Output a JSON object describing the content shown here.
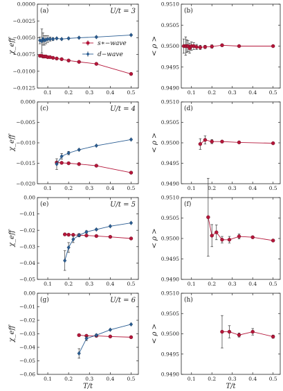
{
  "colors": {
    "s_wave": "#b5163a",
    "d_wave": "#2a5d93",
    "frame": "#222222"
  },
  "x_axis": {
    "label": "T/t",
    "ticks": [
      "0.1",
      "0.2",
      "0.3",
      "0.4",
      "0.5"
    ],
    "tick_values": [
      0.1,
      0.2,
      0.3,
      0.4,
      0.5
    ],
    "lim": [
      0.05,
      0.535
    ]
  },
  "chart_data": [
    {
      "id": "a",
      "type": "line",
      "tag": "(a)",
      "annotation": "U/t = 3",
      "ylabel": "χ_eff",
      "ylim": [
        -0.0125,
        0.0
      ],
      "yticks": [
        0.0,
        -0.0025,
        -0.005,
        -0.0075,
        -0.01,
        -0.0125
      ],
      "yticklabels": [
        "0.0000",
        "−0.0025",
        "−0.0050",
        "−0.0075",
        "−0.0100",
        "−0.0125"
      ],
      "legend": {
        "position": "upper-center",
        "entries": [
          "s∗−wave",
          "d−wave"
        ]
      },
      "series": [
        {
          "name": "s∗−wave",
          "color_key": "s_wave",
          "marker": "circle",
          "x": [
            0.0625,
            0.0714,
            0.0769,
            0.0833,
            0.0909,
            0.1,
            0.1111,
            0.125,
            0.1429,
            0.1667,
            0.2,
            0.25,
            0.3333,
            0.5
          ],
          "y": [
            -0.0077,
            -0.0077,
            -0.0078,
            -0.0078,
            -0.0078,
            -0.0079,
            -0.0079,
            -0.008,
            -0.0081,
            -0.0082,
            -0.0084,
            -0.0086,
            -0.0089,
            -0.0104
          ],
          "err": [
            0,
            0,
            0,
            0,
            0,
            0,
            0,
            0,
            0,
            0,
            0,
            0,
            0,
            0
          ]
        },
        {
          "name": "d−wave",
          "color_key": "d_wave",
          "marker": "diamond",
          "x": [
            0.0625,
            0.0714,
            0.0769,
            0.0833,
            0.0909,
            0.1,
            0.1111,
            0.125,
            0.1429,
            0.1667,
            0.2,
            0.25,
            0.3333,
            0.5
          ],
          "y": [
            -0.0054,
            -0.0055,
            -0.0052,
            -0.0054,
            -0.0053,
            -0.0052,
            -0.0052,
            -0.0052,
            -0.0051,
            -0.0052,
            -0.0051,
            -0.005,
            -0.0049,
            -0.0046
          ],
          "err": [
            0.0005,
            0.0018,
            0.0009,
            0.0007,
            0.0006,
            0.0005,
            0.0003,
            0.0002,
            0.0001,
            0.0001,
            0.0001,
            0.0001,
            0.0001,
            0.0001
          ]
        }
      ]
    },
    {
      "id": "b",
      "type": "line",
      "tag": "(b)",
      "annotation": "",
      "ylabel": "< ρ >",
      "ylim": [
        0.949,
        0.951
      ],
      "yticks": [
        0.951,
        0.9505,
        0.95,
        0.9495,
        0.949
      ],
      "yticklabels": [
        "0.9510",
        "0.9505",
        "0.9500",
        "0.9495",
        "0.9490"
      ],
      "series": [
        {
          "name": "",
          "color_key": "s_wave",
          "marker": "circle",
          "x": [
            0.0625,
            0.0714,
            0.0769,
            0.0833,
            0.0909,
            0.1,
            0.1111,
            0.125,
            0.1429,
            0.1667,
            0.2,
            0.25,
            0.3333,
            0.5
          ],
          "y": [
            0.95,
            0.95,
            0.95,
            0.95,
            0.94995,
            0.95,
            0.95,
            0.94998,
            0.94997,
            0.94998,
            0.94999,
            0.95002,
            0.95,
            0.95
          ],
          "err": [
            0.00017,
            0.00022,
            0.00015,
            0.00013,
            0.00012,
            0.0001,
            8e-05,
            6e-05,
            5e-05,
            4e-05,
            4e-05,
            3e-05,
            1e-05,
            1e-05
          ]
        }
      ]
    },
    {
      "id": "c",
      "type": "line",
      "tag": "(c)",
      "annotation": "U/t = 4",
      "ylabel": "χ_eff",
      "ylim": [
        -0.02,
        0.0
      ],
      "yticks": [
        0.0,
        -0.005,
        -0.01,
        -0.015,
        -0.02
      ],
      "yticklabels": [
        "0.000",
        "−0.005",
        "−0.010",
        "−0.015",
        "−0.020"
      ],
      "series": [
        {
          "name": "s∗−wave",
          "color_key": "s_wave",
          "marker": "circle",
          "x": [
            0.1429,
            0.1667,
            0.2,
            0.25,
            0.3333,
            0.5
          ],
          "y": [
            -0.0148,
            -0.0149,
            -0.015,
            -0.0152,
            -0.0156,
            -0.0173
          ],
          "err": [
            0,
            0,
            0,
            0,
            0,
            0
          ]
        },
        {
          "name": "d−wave",
          "color_key": "d_wave",
          "marker": "diamond",
          "x": [
            0.1429,
            0.1667,
            0.2,
            0.25,
            0.3333,
            0.5
          ],
          "y": [
            -0.0152,
            -0.0133,
            -0.0125,
            -0.0117,
            -0.0107,
            -0.0092
          ],
          "err": [
            0.0013,
            0.0007,
            0.0004,
            0.0002,
            0.0001,
            0.0001
          ]
        }
      ]
    },
    {
      "id": "d",
      "type": "line",
      "tag": "(d)",
      "annotation": "",
      "ylabel": "< ρ >",
      "ylim": [
        0.949,
        0.951
      ],
      "yticks": [
        0.951,
        0.9505,
        0.95,
        0.9495,
        0.949
      ],
      "yticklabels": [
        "0.9510",
        "0.9505",
        "0.9500",
        "0.9495",
        "0.9490"
      ],
      "series": [
        {
          "name": "",
          "color_key": "s_wave",
          "marker": "circle",
          "x": [
            0.1429,
            0.1667,
            0.2,
            0.25,
            0.3333,
            0.5
          ],
          "y": [
            0.94997,
            0.95007,
            0.95003,
            0.95003,
            0.95001,
            0.94999
          ],
          "err": [
            0.00013,
            0.0001,
            5e-05,
            3e-05,
            2e-05,
            1e-05
          ]
        }
      ]
    },
    {
      "id": "e",
      "type": "line",
      "tag": "(e)",
      "annotation": "U/t = 5",
      "ylabel": "χ_eff",
      "ylim": [
        -0.05,
        0.0
      ],
      "yticks": [
        0.0,
        -0.01,
        -0.02,
        -0.03,
        -0.04,
        -0.05
      ],
      "yticklabels": [
        "0.00",
        "−0.01",
        "−0.02",
        "−0.03",
        "−0.04",
        "−0.05"
      ],
      "series": [
        {
          "name": "s∗−wave",
          "color_key": "s_wave",
          "marker": "circle",
          "x": [
            0.1818,
            0.2,
            0.2222,
            0.25,
            0.2857,
            0.3333,
            0.4,
            0.5
          ],
          "y": [
            -0.0225,
            -0.0227,
            -0.0228,
            -0.023,
            -0.0232,
            -0.0235,
            -0.024,
            -0.025
          ],
          "err": [
            0,
            0,
            0,
            0,
            0,
            0,
            0,
            0
          ]
        },
        {
          "name": "d−wave",
          "color_key": "d_wave",
          "marker": "diamond",
          "x": [
            0.1818,
            0.2,
            0.2222,
            0.25,
            0.2857,
            0.3333,
            0.4,
            0.5
          ],
          "y": [
            -0.0385,
            -0.0305,
            -0.0255,
            -0.023,
            -0.021,
            -0.0195,
            -0.0175,
            -0.0155
          ],
          "err": [
            0.006,
            0.003,
            0.002,
            0.001,
            0.0007,
            0.0005,
            0.0003,
            0.0002
          ]
        }
      ]
    },
    {
      "id": "f",
      "type": "line",
      "tag": "(f)",
      "annotation": "",
      "ylabel": "< ρ >",
      "ylim": [
        0.949,
        0.951
      ],
      "yticks": [
        0.951,
        0.9505,
        0.95,
        0.9495,
        0.949
      ],
      "yticklabels": [
        "0.9510",
        "0.9505",
        "0.9500",
        "0.9495",
        "0.9490"
      ],
      "series": [
        {
          "name": "",
          "color_key": "s_wave",
          "marker": "circle",
          "x": [
            0.1818,
            0.2,
            0.2222,
            0.25,
            0.2857,
            0.3333,
            0.4,
            0.5
          ],
          "y": [
            0.95052,
            0.95007,
            0.95015,
            0.94997,
            0.94997,
            0.95005,
            0.95003,
            0.94995
          ],
          "err": [
            0.00095,
            0.00027,
            0.00018,
            8e-05,
            8e-05,
            6e-05,
            3e-05,
            3e-05
          ]
        }
      ]
    },
    {
      "id": "g",
      "type": "line",
      "tag": "(g)",
      "annotation": "U/t = 6",
      "ylabel": "χ_eff",
      "ylim": [
        -0.06,
        0.0
      ],
      "yticks": [
        0.0,
        -0.01,
        -0.02,
        -0.03,
        -0.04,
        -0.05,
        -0.06
      ],
      "yticklabels": [
        "0.00",
        "−0.01",
        "−0.02",
        "−0.03",
        "−0.04",
        "−0.05",
        "−0.06"
      ],
      "series": [
        {
          "name": "s∗−wave",
          "color_key": "s_wave",
          "marker": "circle",
          "x": [
            0.25,
            0.2857,
            0.3333,
            0.4,
            0.5
          ],
          "y": [
            -0.031,
            -0.0315,
            -0.0315,
            -0.032,
            -0.0325
          ],
          "err": [
            0,
            0,
            0,
            0,
            0
          ]
        },
        {
          "name": "d−wave",
          "color_key": "d_wave",
          "marker": "diamond",
          "x": [
            0.25,
            0.2857,
            0.3333,
            0.4,
            0.5
          ],
          "y": [
            -0.0445,
            -0.0335,
            -0.031,
            -0.027,
            -0.023
          ],
          "err": [
            0.0035,
            0.0015,
            0.0008,
            0.0004,
            0.0003
          ]
        }
      ]
    },
    {
      "id": "h",
      "type": "line",
      "tag": "(h)",
      "annotation": "",
      "ylabel": "< ρ >",
      "ylim": [
        0.949,
        0.951
      ],
      "yticks": [
        0.951,
        0.9505,
        0.95,
        0.9495,
        0.949
      ],
      "yticklabels": [
        "0.9510",
        "0.9505",
        "0.9500",
        "0.9495",
        "0.9490"
      ],
      "series": [
        {
          "name": "",
          "color_key": "s_wave",
          "marker": "circle",
          "x": [
            0.25,
            0.2857,
            0.3333,
            0.4,
            0.5
          ],
          "y": [
            0.95005,
            0.95005,
            0.94997,
            0.95005,
            0.94993
          ],
          "err": [
            0.0004,
            0.00015,
            5e-05,
            8e-05,
            4e-05
          ]
        }
      ]
    }
  ]
}
